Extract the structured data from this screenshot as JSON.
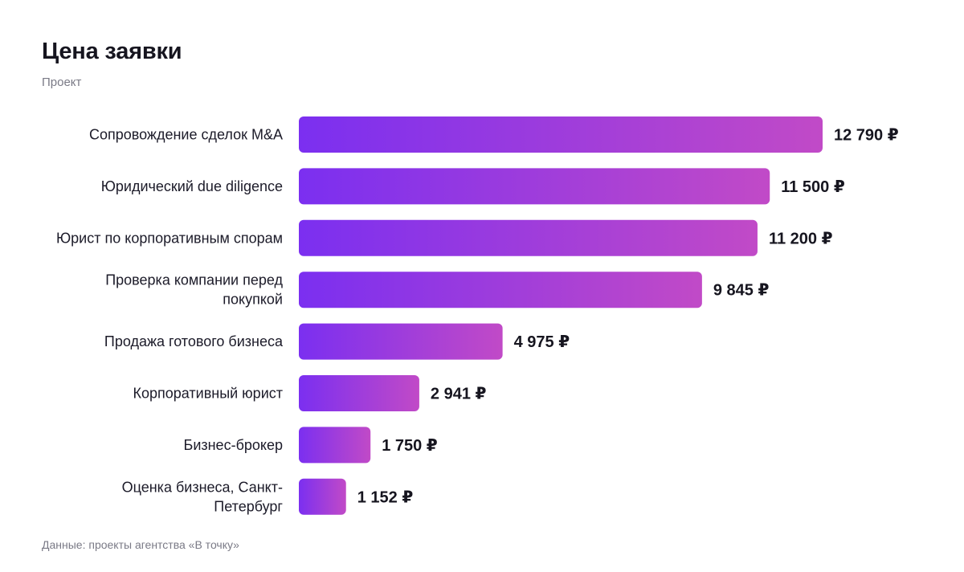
{
  "title": "Цена заявки",
  "subtitle": "Проект",
  "source": "Данные: проекты агентства «В точку»",
  "colors": {
    "bar_start": "#7b2ff0",
    "bar_end": "#c14ac7",
    "text": "#1c1b29",
    "muted": "#7a7a86"
  },
  "chart_data": {
    "type": "bar",
    "orientation": "horizontal",
    "title": "Цена заявки",
    "subtitle": "Проект",
    "currency": "₽",
    "categories": [
      "Сопровождение сделок M&A",
      "Юридический due diligence",
      "Юрист по корпоративным спорам",
      "Проверка компании перед покупкой",
      "Продажа готового бизнеса",
      "Корпоративный юрист",
      "Бизнес-брокер",
      "Оценка бизнеса, Санкт-Петербург"
    ],
    "category_lines": [
      [
        "Сопровождение сделок M&A"
      ],
      [
        "Юридический due diligence"
      ],
      [
        "Юрист по корпоративным спорам"
      ],
      [
        "Проверка компании перед",
        "покупкой"
      ],
      [
        "Продажа готового бизнеса"
      ],
      [
        "Корпоративный юрист"
      ],
      [
        "Бизнес-брокер"
      ],
      [
        "Оценка бизнеса, Санкт-",
        "Петербург"
      ]
    ],
    "values": [
      12790,
      11500,
      11200,
      9845,
      4975,
      2941,
      1750,
      1152
    ],
    "value_labels": [
      "12 790 ₽",
      "11 500 ₽",
      "11 200 ₽",
      "9 845 ₽",
      "4 975 ₽",
      "2 941 ₽",
      "1 750 ₽",
      "1 152 ₽"
    ],
    "grid": false,
    "legend": "none"
  }
}
